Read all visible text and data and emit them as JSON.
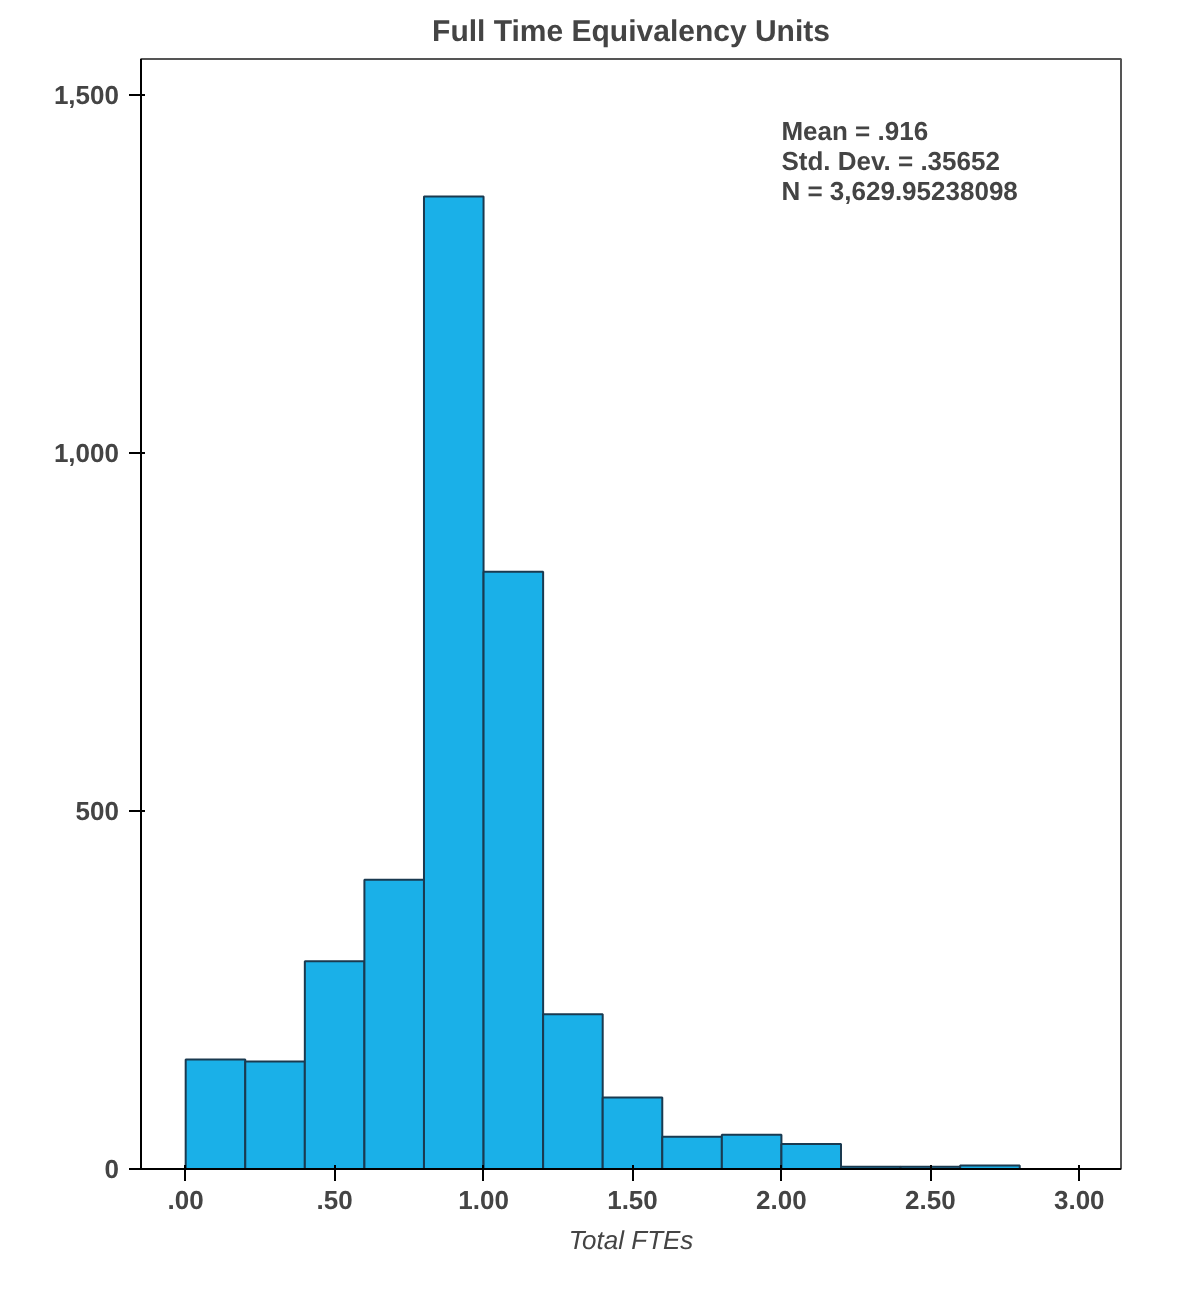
{
  "chart_data": {
    "type": "histogram",
    "title": "Full Time Equivalency Units",
    "xlabel": "Total FTEs",
    "color": "#1ab0e8",
    "bins": [
      0.0,
      0.2,
      0.4,
      0.6,
      0.8,
      1.0,
      1.2,
      1.4,
      1.6,
      1.8,
      2.0,
      2.2,
      2.4,
      2.6,
      2.8
    ],
    "values": [
      153,
      150,
      290,
      404,
      1358,
      834,
      216,
      100,
      45,
      48,
      35,
      3,
      3,
      5
    ],
    "xlim": [
      -0.15,
      3.14
    ],
    "ylim": [
      0,
      1550
    ],
    "xticks": [
      {
        "value": 0,
        "label": ".00"
      },
      {
        "value": 0.5,
        "label": ".50"
      },
      {
        "value": 1,
        "label": "1.00"
      },
      {
        "value": 1.5,
        "label": "1.50"
      },
      {
        "value": 2,
        "label": "2.00"
      },
      {
        "value": 2.5,
        "label": "2.50"
      },
      {
        "value": 3,
        "label": "3.00"
      }
    ],
    "yticks": [
      0,
      {
        "value": 500,
        "label": "500"
      },
      {
        "value": 1000,
        "label": "1,000"
      },
      {
        "value": 1500,
        "label": "1,500"
      }
    ],
    "grid": false,
    "annotations": [
      "Mean = .916\nStd. Dev. = .35652\nN = 3,629.95238098"
    ]
  }
}
